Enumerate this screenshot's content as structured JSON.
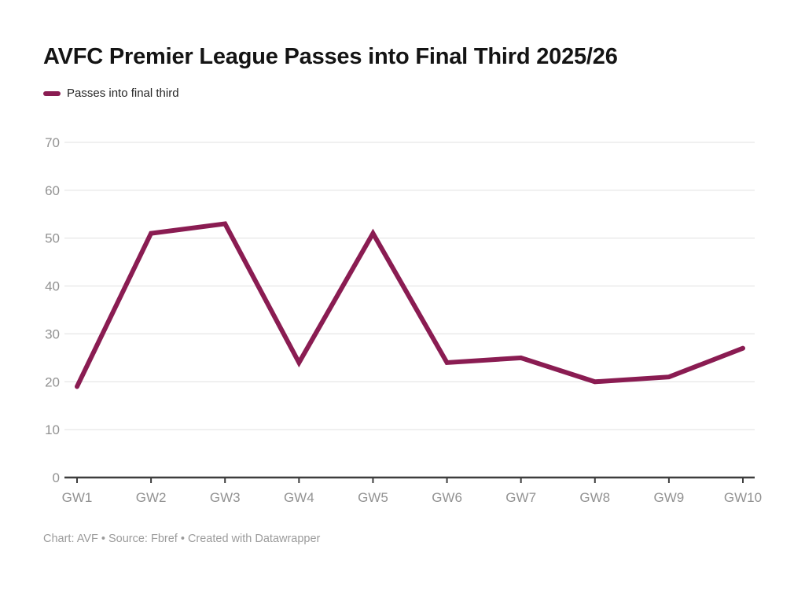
{
  "title": "AVFC Premier League Passes into Final Third 2025/26",
  "legend": {
    "label": "Passes into final third"
  },
  "footer": {
    "text": "Chart: AVF • Source: Fbref • Created with Datawrapper"
  },
  "colors": {
    "line": "#8a1c52",
    "title": "#141414",
    "axis": "#3d3d3d",
    "grid": "#e0e0e0",
    "tick_label": "#929292",
    "footer": "#9b9b9b"
  },
  "chart_data": {
    "type": "line",
    "categories": [
      "GW1",
      "GW2",
      "GW3",
      "GW4",
      "GW5",
      "GW6",
      "GW7",
      "GW8",
      "GW9",
      "GW10"
    ],
    "series": [
      {
        "name": "Passes into final third",
        "values": [
          19,
          51,
          53,
          24,
          51,
          24,
          25,
          20,
          21,
          27
        ]
      }
    ],
    "title": "AVFC Premier League Passes into Final Third 2025/26",
    "xlabel": "",
    "ylabel": "",
    "ylim": [
      0,
      70
    ],
    "yticks": [
      0,
      10,
      20,
      30,
      40,
      50,
      60,
      70
    ],
    "grid": true,
    "legend_position": "top-left"
  }
}
